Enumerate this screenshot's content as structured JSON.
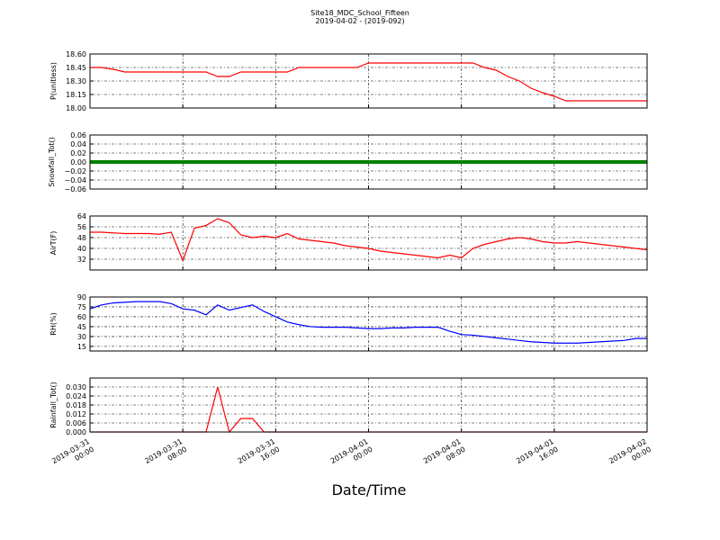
{
  "title": "Site18_MDC_School_Fifteen",
  "subtitle": "2019-04-02 - (2019-092)",
  "xlabel": "Date/Time",
  "xlim": [
    "2019-03-31 00:00",
    "2019-04-02 00:00"
  ],
  "xticks": [
    "2019-03-31 00:00",
    "2019-03-31 08:00",
    "2019-03-31 16:00",
    "2019-04-01 00:00",
    "2019-04-01 08:00",
    "2019-04-01 16:00",
    "2019-04-02 00:00"
  ],
  "x": [
    "2019-03-31 00:00",
    "2019-03-31 01:00",
    "2019-03-31 02:00",
    "2019-03-31 03:00",
    "2019-03-31 04:00",
    "2019-03-31 05:00",
    "2019-03-31 06:00",
    "2019-03-31 07:00",
    "2019-03-31 08:00",
    "2019-03-31 09:00",
    "2019-03-31 10:00",
    "2019-03-31 11:00",
    "2019-03-31 12:00",
    "2019-03-31 13:00",
    "2019-03-31 14:00",
    "2019-03-31 15:00",
    "2019-03-31 16:00",
    "2019-03-31 17:00",
    "2019-03-31 18:00",
    "2019-03-31 19:00",
    "2019-03-31 20:00",
    "2019-03-31 21:00",
    "2019-03-31 22:00",
    "2019-03-31 23:00",
    "2019-04-01 00:00",
    "2019-04-01 01:00",
    "2019-04-01 02:00",
    "2019-04-01 03:00",
    "2019-04-01 04:00",
    "2019-04-01 05:00",
    "2019-04-01 06:00",
    "2019-04-01 07:00",
    "2019-04-01 08:00",
    "2019-04-01 09:00",
    "2019-04-01 10:00",
    "2019-04-01 11:00",
    "2019-04-01 12:00",
    "2019-04-01 13:00",
    "2019-04-01 14:00",
    "2019-04-01 15:00",
    "2019-04-01 16:00",
    "2019-04-01 17:00",
    "2019-04-01 18:00",
    "2019-04-01 19:00",
    "2019-04-01 20:00",
    "2019-04-01 21:00",
    "2019-04-01 22:00",
    "2019-04-01 23:00",
    "2019-04-02 00:00"
  ],
  "chart_data": [
    {
      "type": "line",
      "ylabel": "P(unitless)",
      "color": "#ff0000",
      "grid": true,
      "ylim": [
        18.0,
        18.6
      ],
      "yticks": [
        {
          "value": 18.0,
          "label": "18.00"
        },
        {
          "value": 18.15,
          "label": "18.15"
        },
        {
          "value": 18.3,
          "label": "18.30"
        },
        {
          "value": 18.45,
          "label": "18.45"
        },
        {
          "value": 18.6,
          "label": "18.60"
        }
      ],
      "values": [
        18.45,
        18.45,
        18.43,
        18.4,
        18.4,
        18.4,
        18.4,
        18.4,
        18.4,
        18.4,
        18.4,
        18.35,
        18.35,
        18.4,
        18.4,
        18.4,
        18.4,
        18.4,
        18.45,
        18.45,
        18.45,
        18.45,
        18.45,
        18.45,
        18.5,
        18.5,
        18.5,
        18.5,
        18.5,
        18.5,
        18.5,
        18.5,
        18.5,
        18.5,
        18.45,
        18.42,
        18.35,
        18.3,
        18.22,
        18.17,
        18.13,
        18.08,
        18.08,
        18.08,
        18.08,
        18.08,
        18.08,
        18.08,
        18.08
      ]
    },
    {
      "type": "line",
      "ylabel": "Snowfall_Tot()",
      "color": "#008000",
      "grid": true,
      "ylim": [
        -0.06,
        0.06
      ],
      "yticks": [
        {
          "value": -0.06,
          "label": "−0.06"
        },
        {
          "value": -0.04,
          "label": "−0.04"
        },
        {
          "value": -0.02,
          "label": "−0.02"
        },
        {
          "value": 0,
          "label": "0.00"
        },
        {
          "value": 0.02,
          "label": "0.02"
        },
        {
          "value": 0.04,
          "label": "0.04"
        },
        {
          "value": 0.06,
          "label": "0.06"
        }
      ],
      "values": [
        0,
        0,
        0,
        0,
        0,
        0,
        0,
        0,
        0,
        0,
        0,
        0,
        0,
        0,
        0,
        0,
        0,
        0,
        0,
        0,
        0,
        0,
        0,
        0,
        0,
        0,
        0,
        0,
        0,
        0,
        0,
        0,
        0,
        0,
        0,
        0,
        0,
        0,
        0,
        0,
        0,
        0,
        0,
        0,
        0,
        0,
        0,
        0,
        0
      ]
    },
    {
      "type": "line",
      "ylabel": "AirT(F)",
      "color": "#ff0000",
      "grid": true,
      "ylim": [
        24,
        64
      ],
      "yticks": [
        32,
        40,
        48,
        56,
        64
      ],
      "values": [
        52,
        52,
        51.5,
        51,
        51,
        51,
        50.5,
        52,
        31,
        55,
        57,
        62,
        59,
        50,
        48,
        49,
        48,
        51,
        47,
        46,
        45,
        44,
        42,
        41,
        40,
        38,
        37,
        36,
        35,
        34,
        33,
        35,
        33,
        40,
        43,
        45,
        47,
        48,
        47,
        45,
        44,
        44,
        45,
        44,
        43,
        42,
        41,
        40,
        39
      ]
    },
    {
      "type": "line",
      "ylabel": "RH(%)",
      "color": "#0000ff",
      "grid": true,
      "ylim": [
        8,
        90
      ],
      "yticks": [
        15,
        30,
        45,
        60,
        75,
        90
      ],
      "values": [
        72,
        78,
        81,
        82,
        83,
        83,
        83,
        80,
        72,
        70,
        63,
        78,
        70,
        74,
        78,
        68,
        60,
        52,
        48,
        45,
        44,
        44,
        44,
        43,
        42,
        42,
        43,
        43,
        44,
        44,
        44,
        38,
        33,
        32,
        30,
        28,
        26,
        24,
        22,
        21,
        20,
        20,
        20,
        21,
        22,
        23,
        24,
        27,
        27
      ]
    },
    {
      "type": "line",
      "ylabel": "Rainfall_Tot()",
      "color": "#ff0000",
      "grid": true,
      "ylim": [
        0,
        0.036
      ],
      "yticks": [
        {
          "value": 0,
          "label": "0.000"
        },
        {
          "value": 0.006,
          "label": "0.006"
        },
        {
          "value": 0.012,
          "label": "0.012"
        },
        {
          "value": 0.018,
          "label": "0.018"
        },
        {
          "value": 0.024,
          "label": "0.024"
        },
        {
          "value": 0.03,
          "label": "0.030"
        }
      ],
      "values": [
        0,
        0,
        0,
        0,
        0,
        0,
        0,
        0,
        0,
        0,
        0,
        0.03,
        0,
        0.009,
        0.009,
        0,
        0,
        0,
        0,
        0,
        0,
        0,
        0,
        0,
        0,
        0,
        0,
        0,
        0,
        0,
        0,
        0,
        0,
        0,
        0,
        0,
        0,
        0,
        0,
        0,
        0,
        0,
        0,
        0,
        0,
        0,
        0,
        0,
        0
      ]
    }
  ]
}
